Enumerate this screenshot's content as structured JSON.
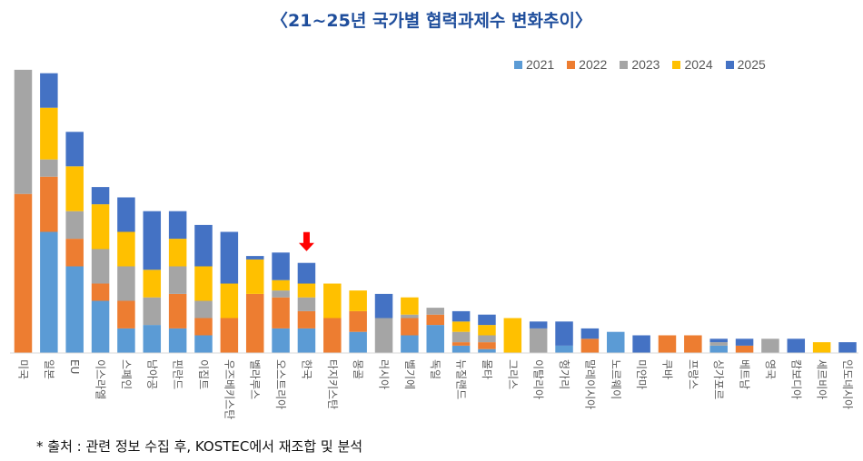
{
  "title": "〈21~25년 국가별 협력과제수 변화추이〉",
  "source": "* 출처 : 관련 정보 수집 후, KOSTEC에서 재조합 및 분석",
  "highlight": {
    "category": "한국",
    "icon": "red-down-arrow-icon",
    "color": "#ff0000"
  },
  "chart_data": {
    "type": "bar",
    "stacked": true,
    "title": "〈21~25년 국가별 협력과제수 변화추이〉",
    "xlabel": "",
    "ylabel": "",
    "ylim": [
      0,
      85
    ],
    "grid": false,
    "legend_position": "top-right",
    "categories": [
      "미국",
      "일본",
      "EU",
      "이스라엘",
      "스페인",
      "남아공",
      "핀란드",
      "이집트",
      "우즈베키스탄",
      "벨라루스",
      "오스트리아",
      "한국",
      "타지키스탄",
      "몽골",
      "러시아",
      "벨기에",
      "독일",
      "뉴질랜드",
      "몰타",
      "그리스",
      "이탈리아",
      "헝가리",
      "말레이시아",
      "노르웨이",
      "미얀마",
      "쿠바",
      "프랑스",
      "싱가포르",
      "베트남",
      "영국",
      "캄보디아",
      "세르비아",
      "인도네시아"
    ],
    "series": [
      {
        "name": "2021",
        "color": "#5b9bd5",
        "values": [
          0,
          35,
          25,
          15,
          7,
          8,
          7,
          5,
          0,
          0,
          7,
          7,
          0,
          6,
          0,
          5,
          8,
          2,
          1,
          0,
          0,
          2,
          0,
          6,
          0,
          0,
          0,
          2,
          0,
          0,
          0,
          0,
          0
        ]
      },
      {
        "name": "2022",
        "color": "#ed7d31",
        "values": [
          46,
          16,
          8,
          5,
          8,
          0,
          10,
          5,
          10,
          17,
          9,
          5,
          10,
          6,
          0,
          5,
          3,
          1,
          2,
          0,
          0,
          0,
          4,
          0,
          0,
          5,
          5,
          0,
          2,
          0,
          0,
          0,
          0
        ]
      },
      {
        "name": "2023",
        "color": "#a5a5a5",
        "values": [
          36,
          5,
          8,
          10,
          10,
          8,
          8,
          5,
          0,
          0,
          2,
          4,
          0,
          0,
          10,
          1,
          2,
          3,
          2,
          0,
          7,
          0,
          0,
          0,
          0,
          0,
          0,
          1,
          0,
          4,
          0,
          0,
          0
        ]
      },
      {
        "name": "2024",
        "color": "#ffc000",
        "values": [
          0,
          15,
          13,
          13,
          10,
          8,
          8,
          10,
          10,
          10,
          3,
          4,
          10,
          6,
          0,
          5,
          0,
          3,
          3,
          10,
          0,
          0,
          0,
          0,
          0,
          0,
          0,
          0,
          0,
          0,
          0,
          3,
          0
        ]
      },
      {
        "name": "2025",
        "color": "#4472c4",
        "values": [
          0,
          10,
          10,
          5,
          10,
          17,
          8,
          12,
          15,
          1,
          8,
          6,
          0,
          0,
          7,
          0,
          0,
          3,
          3,
          0,
          2,
          7,
          3,
          0,
          5,
          0,
          0,
          1,
          2,
          0,
          4,
          0,
          3
        ]
      }
    ]
  }
}
